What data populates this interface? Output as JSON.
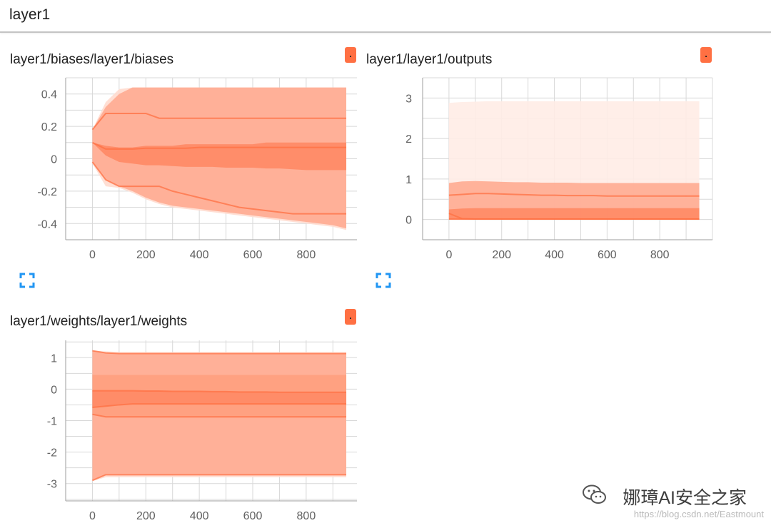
{
  "section": {
    "title": "layer1"
  },
  "cards": [
    {
      "title": "layer1/biases/layer1/biases",
      "menu_label": ".",
      "chart_data": {
        "type": "area",
        "x": [
          0,
          50,
          100,
          150,
          200,
          250,
          300,
          350,
          400,
          450,
          500,
          550,
          600,
          650,
          700,
          750,
          800,
          850,
          900,
          950
        ],
        "xticks": [
          "0",
          "200",
          "400",
          "600",
          "800"
        ],
        "yticks": [
          "0.4",
          "0.2",
          "0",
          "-0.2",
          "-0.4"
        ],
        "xlim": [
          -100,
          990
        ],
        "ylim": [
          -0.5,
          0.5
        ],
        "bands": [
          {
            "color": "#ffdbcf",
            "upper": [
              0.18,
              0.35,
              0.43,
              0.44,
              0.44,
              0.44,
              0.44,
              0.44,
              0.44,
              0.44,
              0.44,
              0.44,
              0.44,
              0.44,
              0.44,
              0.44,
              0.44,
              0.44,
              0.44,
              0.44
            ],
            "lower": [
              -0.03,
              -0.17,
              -0.18,
              -0.21,
              -0.25,
              -0.28,
              -0.3,
              -0.31,
              -0.32,
              -0.33,
              -0.34,
              -0.35,
              -0.36,
              -0.37,
              -0.38,
              -0.39,
              -0.4,
              -0.41,
              -0.42,
              -0.44
            ]
          },
          {
            "color": "#ffab91",
            "upper": [
              0.18,
              0.32,
              0.4,
              0.44,
              0.44,
              0.44,
              0.44,
              0.44,
              0.44,
              0.44,
              0.44,
              0.44,
              0.44,
              0.44,
              0.44,
              0.44,
              0.44,
              0.44,
              0.44,
              0.44
            ],
            "lower": [
              -0.02,
              -0.13,
              -0.17,
              -0.2,
              -0.24,
              -0.27,
              -0.29,
              -0.3,
              -0.31,
              -0.32,
              -0.33,
              -0.34,
              -0.35,
              -0.36,
              -0.37,
              -0.38,
              -0.39,
              -0.4,
              -0.41,
              -0.43
            ]
          },
          {
            "color": "#ff8a65",
            "upper": [
              0.1,
              0.08,
              0.07,
              0.07,
              0.08,
              0.08,
              0.08,
              0.09,
              0.09,
              0.09,
              0.09,
              0.09,
              0.09,
              0.1,
              0.1,
              0.1,
              0.1,
              0.1,
              0.1,
              0.1
            ],
            "lower": [
              0.1,
              0.02,
              -0.02,
              -0.03,
              -0.04,
              -0.04,
              -0.045,
              -0.05,
              -0.05,
              -0.05,
              -0.055,
              -0.055,
              -0.055,
              -0.06,
              -0.06,
              -0.065,
              -0.07,
              -0.07,
              -0.07,
              -0.07
            ]
          }
        ],
        "lines": [
          [
            0.18,
            0.28,
            0.28,
            0.28,
            0.28,
            0.25,
            0.25,
            0.25,
            0.25,
            0.25,
            0.25,
            0.25,
            0.25,
            0.25,
            0.25,
            0.25,
            0.25,
            0.25,
            0.25,
            0.25
          ],
          [
            0.1,
            0.06,
            0.06,
            0.06,
            0.065,
            0.065,
            0.065,
            0.065,
            0.07,
            0.07,
            0.07,
            0.07,
            0.07,
            0.07,
            0.07,
            0.07,
            0.07,
            0.07,
            0.07,
            0.07
          ],
          [
            -0.02,
            -0.13,
            -0.17,
            -0.17,
            -0.17,
            -0.17,
            -0.2,
            -0.22,
            -0.24,
            -0.26,
            -0.28,
            -0.3,
            -0.31,
            -0.32,
            -0.33,
            -0.34,
            -0.34,
            -0.34,
            -0.34,
            -0.34
          ]
        ]
      }
    },
    {
      "title": "layer1/layer1/outputs",
      "menu_label": ".",
      "chart_data": {
        "type": "area",
        "x": [
          0,
          50,
          100,
          150,
          200,
          250,
          300,
          350,
          400,
          450,
          500,
          550,
          600,
          650,
          700,
          750,
          800,
          850,
          900,
          950
        ],
        "xticks": [
          "0",
          "200",
          "400",
          "600",
          "800"
        ],
        "yticks": [
          "3",
          "2",
          "1",
          "0"
        ],
        "xlim": [
          -100,
          1000
        ],
        "ylim": [
          -0.5,
          3.5
        ],
        "bands": [
          {
            "color": "#ffece6",
            "upper": [
              2.88,
              2.9,
              2.91,
              2.92,
              2.92,
              2.92,
              2.92,
              2.92,
              2.92,
              2.92,
              2.92,
              2.92,
              2.92,
              2.92,
              2.92,
              2.92,
              2.92,
              2.92,
              2.92,
              2.92
            ],
            "lower": [
              0,
              0,
              0,
              0,
              0,
              0,
              0,
              0,
              0,
              0,
              0,
              0,
              0,
              0,
              0,
              0,
              0,
              0,
              0,
              0
            ]
          },
          {
            "color": "#ffab91",
            "upper": [
              0.9,
              0.94,
              0.95,
              0.94,
              0.93,
              0.92,
              0.92,
              0.91,
              0.91,
              0.91,
              0.9,
              0.9,
              0.9,
              0.9,
              0.9,
              0.9,
              0.9,
              0.9,
              0.9,
              0.9
            ],
            "lower": [
              0,
              0,
              0,
              0,
              0,
              0,
              0,
              0,
              0,
              0,
              0,
              0,
              0,
              0,
              0,
              0,
              0,
              0,
              0,
              0
            ]
          },
          {
            "color": "#ff8a65",
            "upper": [
              0.25,
              0.27,
              0.28,
              0.28,
              0.28,
              0.28,
              0.28,
              0.28,
              0.28,
              0.28,
              0.28,
              0.28,
              0.28,
              0.28,
              0.28,
              0.28,
              0.28,
              0.28,
              0.28,
              0.28
            ],
            "lower": [
              0,
              0,
              0,
              0,
              0,
              0,
              0,
              0,
              0,
              0,
              0,
              0,
              0,
              0,
              0,
              0,
              0,
              0,
              0,
              0
            ]
          }
        ],
        "lines": [
          [
            0.6,
            0.62,
            0.64,
            0.64,
            0.63,
            0.62,
            0.61,
            0.6,
            0.6,
            0.59,
            0.59,
            0.59,
            0.58,
            0.58,
            0.58,
            0.58,
            0.58,
            0.58,
            0.58,
            0.58
          ],
          [
            0.15,
            0.02,
            0.01,
            0.01,
            0.01,
            0.01,
            0.01,
            0.01,
            0.01,
            0.01,
            0.01,
            0.01,
            0.01,
            0.01,
            0.01,
            0.01,
            0.01,
            0.01,
            0.01,
            0.01
          ],
          [
            0.01,
            0.01,
            0.01,
            0.01,
            0.01,
            0.01,
            0.01,
            0.01,
            0.01,
            0.01,
            0.01,
            0.01,
            0.01,
            0.01,
            0.01,
            0.01,
            0.01,
            0.01,
            0.01,
            0.01
          ]
        ]
      }
    },
    {
      "title": "layer1/weights/layer1/weights",
      "menu_label": ".",
      "chart_data": {
        "type": "area",
        "x": [
          0,
          50,
          100,
          150,
          200,
          250,
          300,
          350,
          400,
          450,
          500,
          550,
          600,
          650,
          700,
          750,
          800,
          850,
          900,
          950
        ],
        "xticks": [
          "0",
          "200",
          "400",
          "600",
          "800"
        ],
        "yticks": [
          "1",
          "0",
          "-1",
          "-2",
          "-3"
        ],
        "xlim": [
          -100,
          990
        ],
        "ylim": [
          -3.55,
          1.55
        ],
        "bands": [
          {
            "color": "#ffdbcf",
            "upper": [
              1.22,
              1.2,
              1.18,
              1.18,
              1.18,
              1.18,
              1.18,
              1.18,
              1.18,
              1.18,
              1.18,
              1.18,
              1.18,
              1.18,
              1.18,
              1.18,
              1.18,
              1.18,
              1.18,
              1.18
            ],
            "lower": [
              -2.92,
              -2.8,
              -2.8,
              -2.8,
              -2.8,
              -2.8,
              -2.8,
              -2.8,
              -2.8,
              -2.8,
              -2.8,
              -2.8,
              -2.8,
              -2.8,
              -2.8,
              -2.8,
              -2.8,
              -2.8,
              -2.8,
              -2.8
            ]
          },
          {
            "color": "#ffab91",
            "upper": [
              1.22,
              1.15,
              1.13,
              1.13,
              1.13,
              1.13,
              1.13,
              1.13,
              1.13,
              1.13,
              1.13,
              1.13,
              1.13,
              1.13,
              1.13,
              1.13,
              1.13,
              1.13,
              1.13,
              1.13
            ],
            "lower": [
              -2.9,
              -2.72,
              -2.72,
              -2.72,
              -2.72,
              -2.72,
              -2.72,
              -2.72,
              -2.72,
              -2.72,
              -2.72,
              -2.72,
              -2.72,
              -2.72,
              -2.72,
              -2.72,
              -2.72,
              -2.72,
              -2.72,
              -2.72
            ]
          },
          {
            "color": "#ffa07e",
            "upper": [
              0.45,
              0.45,
              0.45,
              0.45,
              0.45,
              0.45,
              0.45,
              0.45,
              0.45,
              0.45,
              0.45,
              0.45,
              0.45,
              0.45,
              0.45,
              0.45,
              0.45,
              0.45,
              0.45,
              0.45
            ],
            "lower": [
              -0.8,
              -0.88,
              -0.88,
              -0.88,
              -0.88,
              -0.88,
              -0.88,
              -0.88,
              -0.88,
              -0.88,
              -0.88,
              -0.88,
              -0.88,
              -0.88,
              -0.88,
              -0.88,
              -0.88,
              -0.88,
              -0.88,
              -0.88
            ]
          },
          {
            "color": "#ff8a65",
            "upper": [
              -0.05,
              -0.05,
              -0.05,
              -0.05,
              -0.06,
              -0.06,
              -0.07,
              -0.07,
              -0.07,
              -0.08,
              -0.08,
              -0.09,
              -0.09,
              -0.09,
              -0.1,
              -0.1,
              -0.1,
              -0.1,
              -0.1,
              -0.1
            ],
            "lower": [
              -0.58,
              -0.54,
              -0.5,
              -0.47,
              -0.47,
              -0.47,
              -0.47,
              -0.47,
              -0.47,
              -0.47,
              -0.47,
              -0.47,
              -0.47,
              -0.47,
              -0.47,
              -0.47,
              -0.47,
              -0.47,
              -0.47,
              -0.47
            ]
          }
        ],
        "lines": [
          [
            1.22,
            1.15,
            1.13,
            1.13,
            1.13,
            1.13,
            1.13,
            1.13,
            1.13,
            1.13,
            1.13,
            1.13,
            1.13,
            1.13,
            1.13,
            1.13,
            1.13,
            1.13,
            1.13,
            1.13
          ],
          [
            -0.05,
            -0.05,
            -0.05,
            -0.05,
            -0.06,
            -0.06,
            -0.07,
            -0.07,
            -0.07,
            -0.08,
            -0.08,
            -0.09,
            -0.09,
            -0.09,
            -0.1,
            -0.1,
            -0.1,
            -0.1,
            -0.1,
            -0.1
          ],
          [
            -0.58,
            -0.54,
            -0.5,
            -0.47,
            -0.47,
            -0.47,
            -0.47,
            -0.47,
            -0.47,
            -0.47,
            -0.47,
            -0.47,
            -0.47,
            -0.47,
            -0.47,
            -0.47,
            -0.47,
            -0.47,
            -0.47,
            -0.47
          ],
          [
            -0.8,
            -0.88,
            -0.88,
            -0.88,
            -0.88,
            -0.88,
            -0.88,
            -0.88,
            -0.88,
            -0.88,
            -0.88,
            -0.88,
            -0.88,
            -0.88,
            -0.88,
            -0.88,
            -0.88,
            -0.88,
            -0.88,
            -0.88
          ],
          [
            -2.9,
            -2.72,
            -2.72,
            -2.72,
            -2.72,
            -2.72,
            -2.72,
            -2.72,
            -2.72,
            -2.72,
            -2.72,
            -2.72,
            -2.72,
            -2.72,
            -2.72,
            -2.72,
            -2.72,
            -2.72,
            -2.72,
            -2.72
          ]
        ]
      }
    }
  ],
  "watermark": {
    "text": "娜璋AI安全之家",
    "url": "https://blog.csdn.net/Eastmount",
    "icon": "wechat-icon"
  },
  "colors": {
    "accent": "#ff7043",
    "line": "#ff7043",
    "grid": "#d8d8d8",
    "axis": "#9e9e9e",
    "tick_text": "#616161",
    "expand_icon": "#2196f3"
  }
}
